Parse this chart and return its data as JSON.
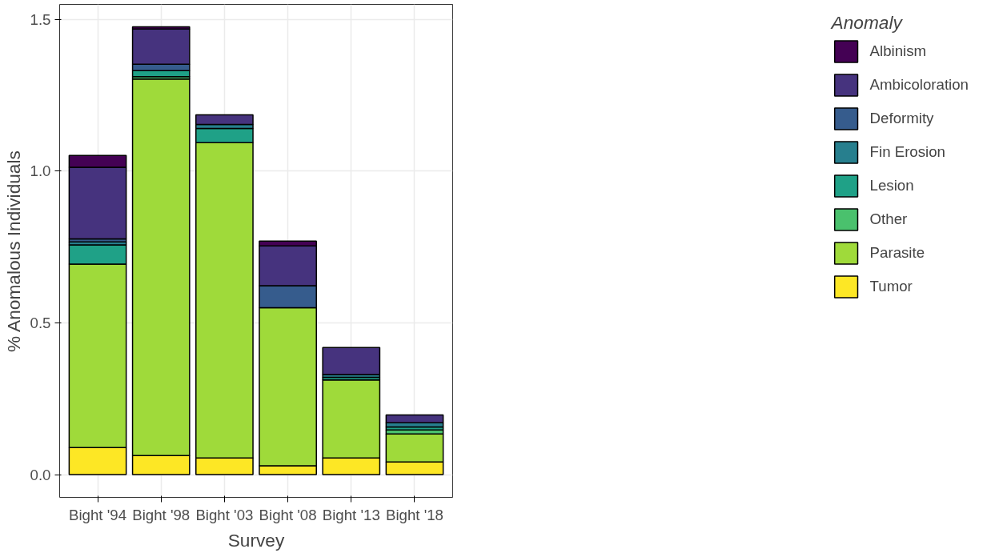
{
  "chart_data": {
    "type": "bar",
    "stacked": true,
    "xlabel": "Survey",
    "ylabel": "% Anomalous Individuals",
    "legend_title": "Anomaly",
    "legend": "right",
    "grid": true,
    "categories": [
      "Bight '94",
      "Bight '98",
      "Bight '03",
      "Bight '08",
      "Bight '13",
      "Bight '18"
    ],
    "ylim": [
      -0.075,
      1.55
    ],
    "yticks": [
      {
        "value": 0,
        "label": "0.0"
      },
      1.5,
      {
        "value": 1,
        "label": "1.0"
      },
      0.5
    ],
    "series": [
      {
        "name": "Tumor",
        "color": "#fde725",
        "values": [
          0.089,
          0.063,
          0.055,
          0.029,
          0.055,
          0.042
        ]
      },
      {
        "name": "Parasite",
        "color": "#9fda3a",
        "values": [
          0.605,
          1.241,
          1.039,
          0.521,
          0.257,
          0.092
        ]
      },
      {
        "name": "Other",
        "color": "#4ac16d",
        "values": [
          null,
          0.008,
          null,
          null,
          null,
          0.013
        ]
      },
      {
        "name": "Lesion",
        "color": "#1fa187",
        "values": [
          0.063,
          0.02,
          0.047,
          null,
          0.009,
          0.01
        ]
      },
      {
        "name": "Fin Erosion",
        "color": "#277f8e",
        "values": [
          0.01,
          null,
          0.013,
          null,
          0.009,
          0.014
        ]
      },
      {
        "name": "Deformity",
        "color": "#365c8d",
        "values": [
          0.01,
          0.021,
          null,
          0.073,
          null,
          null
        ]
      },
      {
        "name": "Ambicoloration",
        "color": "#46337e",
        "values": [
          0.236,
          0.116,
          0.032,
          0.131,
          0.089,
          0.026
        ]
      },
      {
        "name": "Albinism",
        "color": "#440154",
        "values": [
          0.039,
          0.007,
          null,
          0.016,
          null,
          null
        ]
      }
    ]
  }
}
